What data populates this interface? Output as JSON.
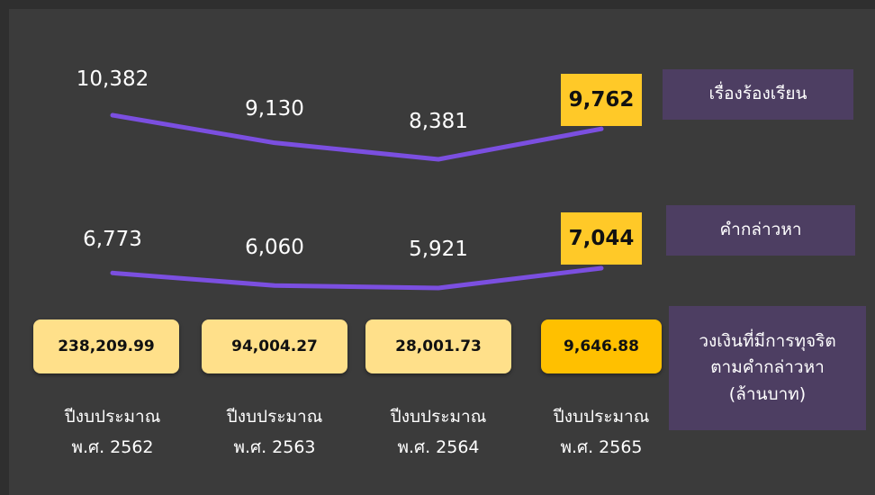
{
  "series": [
    {
      "name": "เรื่องร้องเรียน",
      "values": [
        10382,
        9130,
        8381,
        9762
      ],
      "value_labels": [
        "10,382",
        "9,130",
        "8,381",
        "9,762"
      ]
    },
    {
      "name": "คำกล่าวหา",
      "values": [
        6773,
        6060,
        5921,
        7044
      ],
      "value_labels": [
        "6,773",
        "6,060",
        "5,921",
        "7,044"
      ]
    }
  ],
  "amounts": {
    "name": "วงเงินที่มีการทุจริต\nตามคำกล่าวหา\n(ล้านบาท)",
    "values": [
      238209.99,
      94004.27,
      28001.73,
      9646.88
    ],
    "value_labels": [
      "238,209.99",
      "94,004.27",
      "28,001.73",
      "9,646.88"
    ]
  },
  "years": [
    "ปีงบประมาณ\nพ.ศ. 2562",
    "ปีงบประมาณ\nพ.ศ. 2563",
    "ปีงบประมาณ\nพ.ศ. 2564",
    "ปีงบประมาณ\nพ.ศ. 2565"
  ]
}
